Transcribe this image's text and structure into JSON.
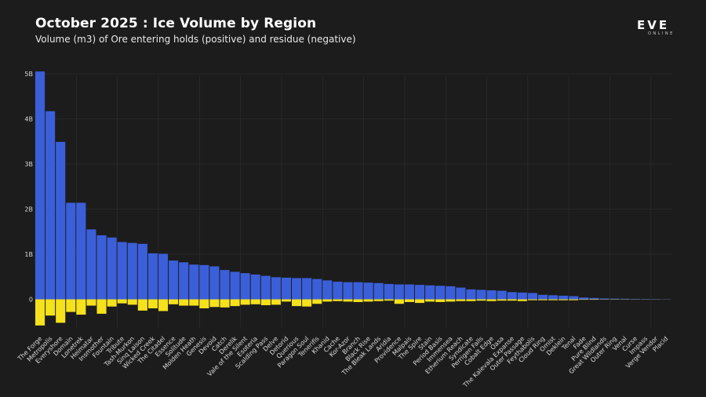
{
  "header": {
    "title": "October 2025 : Ice Volume by Region",
    "subtitle": "Volume (m3) of Ore entering holds (positive) and residue (negative)"
  },
  "logo": {
    "main": "EVE",
    "sub": "ONLINE"
  },
  "colors": {
    "positive": "#3b5fd9",
    "negative": "#f5e11c",
    "background": "#1c1c1c",
    "grid": "#333333"
  },
  "chart_data": {
    "type": "bar",
    "title": "October 2025 : Ice Volume by Region",
    "subtitle": "Volume (m3) of Ore entering holds (positive) and residue (negative)",
    "ylim": [
      -0.6,
      5.0
    ],
    "yticks": [
      0,
      1,
      2,
      3,
      4,
      5
    ],
    "ytick_labels": [
      "0",
      "1B",
      "2B",
      "3B",
      "4B",
      "5B"
    ],
    "grid": true,
    "categories": [
      "The Forge",
      "Metropolis",
      "Everyshore",
      "Domain",
      "Lonetrek",
      "Heimatar",
      "Insmother",
      "Fountain",
      "Tribute",
      "Tash-Murkon",
      "Sinq Laison",
      "Wicked Creek",
      "The Citadel",
      "Essence",
      "Solitude",
      "Molden Heath",
      "Genesis",
      "Devoid",
      "Catch",
      "Derelik",
      "Vale of the Silent",
      "Esoteria",
      "Scalding Pass",
      "Delve",
      "Detorid",
      "Querious",
      "Paragon Soul",
      "Tenerifis",
      "Khanid",
      "Cache",
      "Kor-Azor",
      "Branch",
      "Black Rise",
      "The Bleak Lands",
      "Aridia",
      "Providence",
      "Malpais",
      "The Spire",
      "Stain",
      "Period Basis",
      "Immensea",
      "Etherium Reach",
      "Syndicate",
      "Perrigen Falls",
      "Cobalt Edge",
      "Oasa",
      "The Kalevala Expanse",
      "Outer Passage",
      "Feythabolis",
      "Cloud Ring",
      "Omist",
      "Deklein",
      "Tenal",
      "Fade",
      "Pure Blind",
      "Great Wildlands",
      "Outer Ring",
      "Venal",
      "Curse",
      "Impass",
      "Verge Vendor",
      "Placid"
    ],
    "series": [
      {
        "values": [
          5.05,
          4.17,
          3.49,
          2.14,
          2.14,
          1.55,
          1.42,
          1.37,
          1.27,
          1.25,
          1.23,
          1.02,
          1.01,
          0.86,
          0.82,
          0.77,
          0.76,
          0.73,
          0.65,
          0.61,
          0.58,
          0.55,
          0.52,
          0.49,
          0.48,
          0.47,
          0.47,
          0.45,
          0.42,
          0.39,
          0.38,
          0.38,
          0.37,
          0.36,
          0.34,
          0.33,
          0.33,
          0.32,
          0.31,
          0.3,
          0.29,
          0.26,
          0.22,
          0.21,
          0.2,
          0.19,
          0.16,
          0.15,
          0.14,
          0.1,
          0.09,
          0.08,
          0.07,
          0.04,
          0.03,
          0.02,
          0.015,
          0.012,
          0.01,
          0.008,
          0.006,
          0.004
        ]
      },
      {
        "values": [
          -0.58,
          -0.36,
          -0.52,
          -0.28,
          -0.34,
          -0.14,
          -0.32,
          -0.16,
          -0.09,
          -0.12,
          -0.25,
          -0.2,
          -0.26,
          -0.11,
          -0.14,
          -0.14,
          -0.2,
          -0.17,
          -0.18,
          -0.15,
          -0.12,
          -0.11,
          -0.13,
          -0.12,
          -0.05,
          -0.15,
          -0.16,
          -0.1,
          -0.05,
          -0.04,
          -0.05,
          -0.06,
          -0.05,
          -0.04,
          -0.03,
          -0.1,
          -0.06,
          -0.08,
          -0.05,
          -0.06,
          -0.05,
          -0.04,
          -0.04,
          -0.03,
          -0.04,
          -0.03,
          -0.03,
          -0.04,
          -0.02,
          -0.02,
          -0.02,
          -0.02,
          -0.02,
          -0.01,
          -0.01,
          -0.005,
          -0.005,
          -0.004,
          -0.003,
          -0.002,
          -0.002,
          -0.001
        ]
      }
    ]
  }
}
